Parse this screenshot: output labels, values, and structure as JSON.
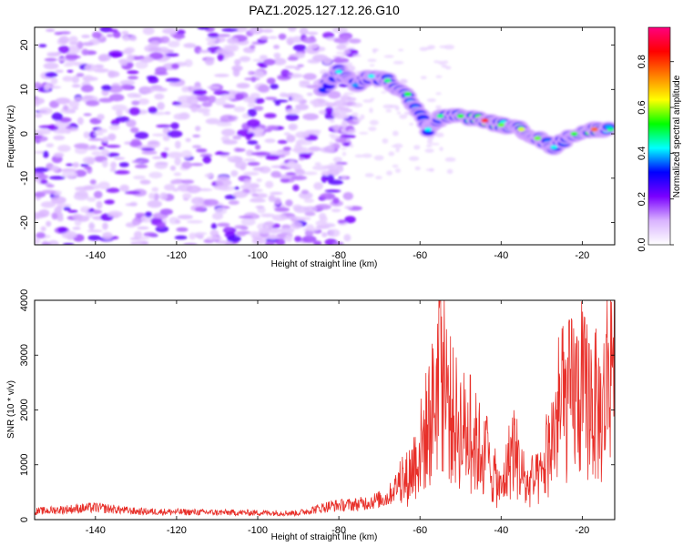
{
  "title": "PAZ1.2025.127.12.26.G10",
  "chart_data": [
    {
      "type": "heatmap",
      "xlabel": "Height of straight line (km)",
      "ylabel": "Frequency (Hz)",
      "xlim": [
        -155,
        -12
      ],
      "ylim": [
        -25,
        24
      ],
      "xticks": [
        -140,
        -120,
        -100,
        -80,
        -60,
        -40,
        -20
      ],
      "yticks": [
        -20,
        -10,
        0,
        10,
        20
      ],
      "colorbar": {
        "label": "Normalized spectral amplitude",
        "range": [
          0,
          0.95
        ],
        "ticks": [
          0.0,
          0.2,
          0.4,
          0.6,
          0.8
        ],
        "colors": [
          "#ffffff",
          "#d9b3ff",
          "#7a00ff",
          "#0000ff",
          "#00ffff",
          "#00ff00",
          "#ffff00",
          "#ff8000",
          "#ff0000",
          "#ff0080"
        ]
      },
      "signal_trace": [
        {
          "x": -84,
          "y": 10,
          "v": 0.35
        },
        {
          "x": -80,
          "y": 14,
          "v": 0.45
        },
        {
          "x": -76,
          "y": 11,
          "v": 0.4
        },
        {
          "x": -72,
          "y": 13,
          "v": 0.45
        },
        {
          "x": -68,
          "y": 12,
          "v": 0.5
        },
        {
          "x": -63,
          "y": 9,
          "v": 0.55
        },
        {
          "x": -58,
          "y": 1,
          "v": 0.45
        },
        {
          "x": -55,
          "y": 4,
          "v": 0.5
        },
        {
          "x": -50,
          "y": 4,
          "v": 0.55
        },
        {
          "x": -44,
          "y": 3,
          "v": 0.85
        },
        {
          "x": -40,
          "y": 2,
          "v": 0.6
        },
        {
          "x": -35,
          "y": 1,
          "v": 0.65
        },
        {
          "x": -31,
          "y": -1,
          "v": 0.6
        },
        {
          "x": -27,
          "y": -3,
          "v": 0.45
        },
        {
          "x": -22,
          "y": 0,
          "v": 0.55
        },
        {
          "x": -17,
          "y": 1,
          "v": 0.8
        },
        {
          "x": -13,
          "y": 1,
          "v": 0.5
        }
      ]
    },
    {
      "type": "line",
      "xlabel": "Height of straight line (km)",
      "ylabel": "SNR (10 * v/v)",
      "xlim": [
        -155,
        -12
      ],
      "ylim": [
        0,
        4000
      ],
      "xticks": [
        -140,
        -120,
        -100,
        -80,
        -60,
        -40,
        -20
      ],
      "yticks": [
        0,
        1000,
        2000,
        3000,
        4000
      ],
      "color": "#e8302a",
      "envelope": [
        {
          "x": -155,
          "y": 150
        },
        {
          "x": -140,
          "y": 220
        },
        {
          "x": -130,
          "y": 150
        },
        {
          "x": -110,
          "y": 130
        },
        {
          "x": -90,
          "y": 120
        },
        {
          "x": -82,
          "y": 250
        },
        {
          "x": -75,
          "y": 280
        },
        {
          "x": -68,
          "y": 400
        },
        {
          "x": -63,
          "y": 900
        },
        {
          "x": -60,
          "y": 1500
        },
        {
          "x": -57,
          "y": 2300
        },
        {
          "x": -55,
          "y": 3300
        },
        {
          "x": -52,
          "y": 2200
        },
        {
          "x": -48,
          "y": 1800
        },
        {
          "x": -45,
          "y": 1500
        },
        {
          "x": -42,
          "y": 1000
        },
        {
          "x": -40,
          "y": 600
        },
        {
          "x": -37,
          "y": 1600
        },
        {
          "x": -34,
          "y": 700
        },
        {
          "x": -30,
          "y": 900
        },
        {
          "x": -26,
          "y": 2200
        },
        {
          "x": -22,
          "y": 2700
        },
        {
          "x": -18,
          "y": 2600
        },
        {
          "x": -15,
          "y": 2200
        },
        {
          "x": -13,
          "y": 3800
        }
      ]
    }
  ]
}
